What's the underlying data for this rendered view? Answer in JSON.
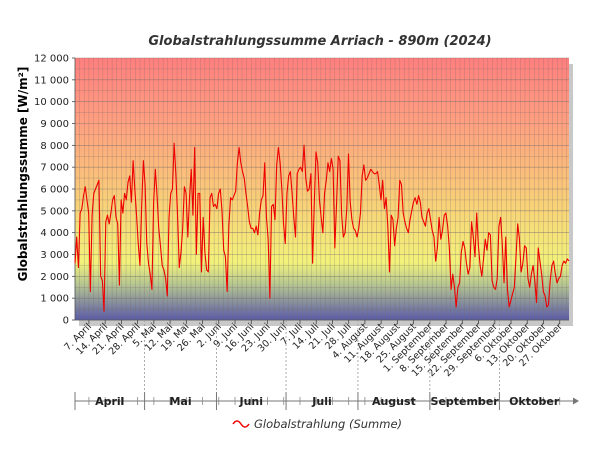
{
  "chart_data": {
    "type": "line",
    "title": "Globalstrahlungssumme Arriach - 890m (2024)",
    "ylabel": "Globalstrahlungssumme [W/m²]",
    "xlabel": "",
    "ylim": [
      0,
      12000
    ],
    "yticks": [
      0,
      1000,
      2000,
      3000,
      4000,
      5000,
      6000,
      7000,
      8000,
      9000,
      10000,
      11000,
      12000
    ],
    "ytick_labels": [
      "0",
      "1 000",
      "2 000",
      "3 000",
      "4 000",
      "5 000",
      "6 000",
      "7 000",
      "8 000",
      "9 000",
      "10 000",
      "11 000",
      "12 000"
    ],
    "x_start": "2024-04-01",
    "x_end": "2024-10-31",
    "x_tick_labels": [
      "7. April",
      "14. April",
      "21. April",
      "28. April",
      "5. Mai",
      "12. Mai",
      "19. Mai",
      "26. Mai",
      "2. Juni",
      "9. Juni",
      "16. Juni",
      "23. Juni",
      "30. Juni",
      "7. Juli",
      "14. Juli",
      "21. Juli",
      "28. Juli",
      "4. August",
      "11. August",
      "18. August",
      "25. August",
      "1. September",
      "8. September",
      "15. September",
      "22. September",
      "29. September",
      "6. Oktober",
      "13. Oktober",
      "20. Oktober",
      "27. Oktober"
    ],
    "months": [
      "April",
      "Mai",
      "Juni",
      "Juli",
      "August",
      "September",
      "Oktober"
    ],
    "grid": true,
    "legend_position": "bottom-center",
    "background_gradient": [
      "#ff7f7f",
      "#f2f27a",
      "#5a5aa8"
    ],
    "series": [
      {
        "name": "Globalstrahlung (Summe)",
        "color": "#ee0000",
        "values": [
          2600,
          3800,
          2400,
          4900,
          5100,
          5700,
          6100,
          5500,
          4900,
          1300,
          4800,
          5800,
          6000,
          6200,
          6400,
          2000,
          1800,
          400,
          4500,
          4800,
          4400,
          4900,
          5500,
          5700,
          4700,
          4400,
          1600,
          5500,
          4900,
          5800,
          5500,
          6300,
          6600,
          5400,
          7300,
          6000,
          4800,
          3500,
          2500,
          5200,
          7300,
          6200,
          3500,
          2600,
          2100,
          1400,
          5400,
          6900,
          5700,
          4200,
          3400,
          2500,
          2300,
          1900,
          1100,
          4700,
          5800,
          6000,
          8100,
          6700,
          4800,
          2400,
          3100,
          4200,
          6100,
          5800,
          3800,
          5600,
          6900,
          4800,
          7900,
          3000,
          5800,
          5800,
          2200,
          4700,
          3100,
          2300,
          2200,
          5600,
          5800,
          5200,
          5300,
          5100,
          5800,
          6000,
          5000,
          3200,
          2900,
          1300,
          4300,
          5600,
          5500,
          5700,
          5900,
          7200,
          7900,
          7200,
          6800,
          6500,
          5800,
          5200,
          4500,
          4200,
          4200,
          4000,
          4300,
          3900,
          4900,
          5500,
          5700,
          7200,
          4700,
          3700,
          1000,
          5200,
          5300,
          4600,
          7100,
          7900,
          7200,
          6000,
          4400,
          3500,
          5800,
          6600,
          6800,
          5800,
          4700,
          3800,
          6700,
          6900,
          7000,
          6800,
          8000,
          6500,
          5900,
          6000,
          6700,
          2600,
          5400,
          7700,
          7200,
          5500,
          4700,
          4000,
          5800,
          6400,
          7200,
          6800,
          7400,
          6900,
          3300,
          5300,
          7500,
          7300,
          4800,
          3800,
          4000,
          5100,
          7600,
          5400,
          4600,
          4200,
          4100,
          3800,
          4200,
          4900,
          6600,
          7100,
          6400,
          6500,
          6700,
          6900,
          6800,
          6700,
          6700,
          6800,
          6200,
          5500,
          6400,
          5100,
          5600,
          4300,
          2200,
          4800,
          4600,
          3400,
          4200,
          4700,
          6400,
          6200,
          4900,
          4500,
          4200,
          4000,
          4600,
          5000,
          5400,
          5600,
          5300,
          5700,
          5400,
          4700,
          4500,
          4300,
          4900,
          5100,
          4600,
          4100,
          3800,
          2700,
          3300,
          4700,
          3700,
          4100,
          4800,
          4900,
          4300,
          3300,
          1400,
          2100,
          1500,
          600,
          1500,
          1700,
          3100,
          3600,
          3300,
          2600,
          2100,
          2400,
          4500,
          3800,
          2900,
          4900,
          3400,
          2500,
          2000,
          2800,
          3700,
          3200,
          4000,
          3900,
          1800,
          1500,
          1400,
          1900,
          4300,
          4700,
          3400,
          1700,
          3800,
          1400,
          600,
          900,
          1200,
          1500,
          2900,
          4400,
          3700,
          2200,
          2600,
          3400,
          3300,
          1900,
          1500,
          2100,
          2500,
          1800,
          800,
          3300,
          2700,
          2100,
          1300,
          1100,
          600,
          700,
          1800,
          2500,
          2700,
          2100,
          1700,
          1900,
          2000,
          2500,
          2700,
          2600,
          2800,
          2700
        ]
      }
    ]
  }
}
